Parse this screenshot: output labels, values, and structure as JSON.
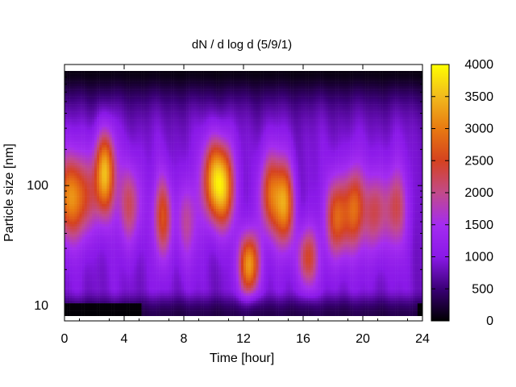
{
  "chart_data": {
    "type": "heatmap",
    "title": "dN / d log d (5/9/1)",
    "xlabel": "Time [hour]",
    "ylabel": "Particle size [nm]",
    "x_ticks": [
      "0",
      "4",
      "8",
      "12",
      "16",
      "20",
      "24"
    ],
    "y_ticks": [
      "10",
      "100"
    ],
    "colorbar_ticks": [
      "0",
      "500",
      "1000",
      "1500",
      "2000",
      "2500",
      "3000",
      "3500",
      "4000"
    ],
    "xlim": [
      0,
      24
    ],
    "ylim_nm": [
      8.2,
      900
    ],
    "y_scale": "log",
    "zlim": [
      0,
      4000
    ],
    "colormap": [
      "#000000",
      "#3a0077",
      "#8a19e8",
      "#a42cf0",
      "#c24a8a",
      "#d5421f",
      "#e87a11",
      "#f1ba1d",
      "#ffff00"
    ],
    "grid": false,
    "legend": "colorbar-right",
    "background_level": 900,
    "top_fade_start_nm": 170,
    "low_size_fade_end_nm": 14,
    "events": [
      {
        "x": 0.5,
        "y_nm": 80,
        "peak": 2700
      },
      {
        "x": 2.7,
        "y_nm": 130,
        "peak": 2900
      },
      {
        "x": 4.4,
        "y_nm": 70,
        "peak": 1850
      },
      {
        "x": 6.6,
        "y_nm": 55,
        "peak": 2150
      },
      {
        "x": 8.2,
        "y_nm": 50,
        "peak": 1500
      },
      {
        "x": 10.0,
        "y_nm": 110,
        "peak": 2900
      },
      {
        "x": 10.8,
        "y_nm": 95,
        "peak": 2350
      },
      {
        "x": 12.4,
        "y_nm": 22,
        "peak": 2900
      },
      {
        "x": 13.8,
        "y_nm": 85,
        "peak": 2300
      },
      {
        "x": 14.8,
        "y_nm": 70,
        "peak": 2600
      },
      {
        "x": 16.3,
        "y_nm": 25,
        "peak": 2100
      },
      {
        "x": 18.3,
        "y_nm": 55,
        "peak": 2500
      },
      {
        "x": 19.5,
        "y_nm": 65,
        "peak": 2250
      },
      {
        "x": 20.8,
        "y_nm": 60,
        "peak": 1900
      },
      {
        "x": 22.2,
        "y_nm": 65,
        "peak": 1850
      }
    ]
  }
}
